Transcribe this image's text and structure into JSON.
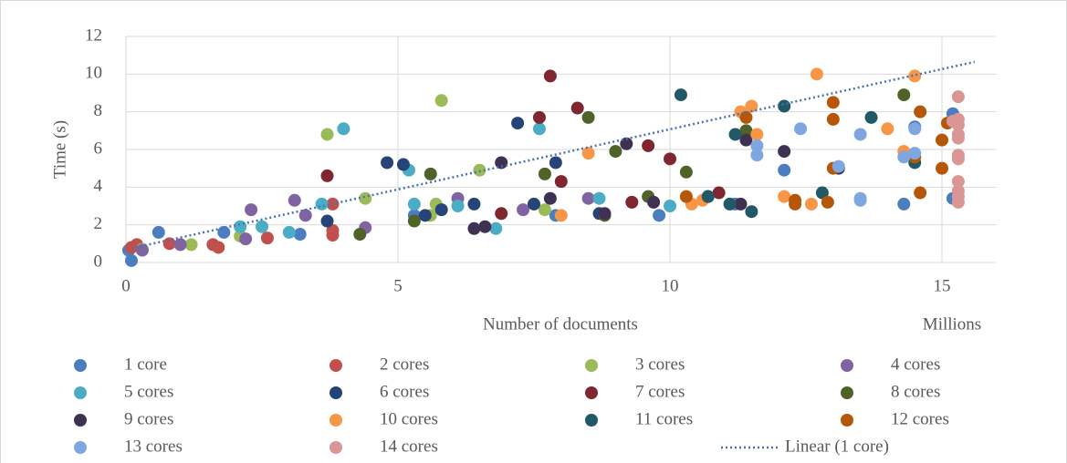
{
  "chart_data": {
    "type": "scatter",
    "xlabel": "Number of documents",
    "x_display_units": "Millions",
    "ylabel": "Time (s)",
    "xlim": [
      0,
      16
    ],
    "xticks": [
      0,
      5,
      10,
      15
    ],
    "ylim": [
      0,
      12
    ],
    "yticks": [
      0,
      2,
      4,
      6,
      8,
      10,
      12
    ],
    "grid": true,
    "legend": "bottom",
    "series": [
      {
        "name": "1 core",
        "color": "#4a7ebf",
        "x": [
          0.05,
          0.1,
          0.6,
          1.8,
          3.2,
          5.3,
          7.9,
          9.8,
          11.2,
          12.1,
          14.3,
          15.2,
          14.5,
          15.2
        ],
        "values": [
          0.65,
          0.1,
          1.6,
          1.6,
          1.5,
          2.5,
          2.5,
          2.5,
          3.1,
          4.9,
          3.1,
          3.4,
          7.2,
          7.9
        ]
      },
      {
        "name": "2 cores",
        "color": "#c0504d",
        "x": [
          0.1,
          0.2,
          0.8,
          1.6,
          1.7,
          2.6,
          3.8,
          3.8,
          3.8
        ],
        "values": [
          0.8,
          0.95,
          1.0,
          0.95,
          0.8,
          1.3,
          1.7,
          1.45,
          3.1
        ]
      },
      {
        "name": "3 cores",
        "color": "#9bbb59",
        "x": [
          0.3,
          1.2,
          2.1,
          3.7,
          4.4,
          5.8,
          5.7,
          6.5,
          5.6,
          7.7
        ],
        "values": [
          0.7,
          0.95,
          1.4,
          6.8,
          3.4,
          8.6,
          3.1,
          4.9,
          2.5,
          2.8
        ]
      },
      {
        "name": "4 cores",
        "color": "#8064a2",
        "x": [
          0.3,
          1.0,
          2.2,
          2.3,
          3.1,
          3.3,
          4.4,
          6.1,
          7.3,
          8.5
        ],
        "values": [
          0.65,
          0.95,
          1.25,
          2.8,
          3.3,
          2.5,
          1.85,
          3.4,
          2.8,
          3.4
        ]
      },
      {
        "name": "5 cores",
        "color": "#4bacc6",
        "x": [
          2.1,
          2.5,
          3.0,
          3.6,
          4.0,
          5.2,
          5.3,
          6.1,
          6.8,
          7.6,
          8.7,
          10.0
        ],
        "values": [
          1.9,
          1.9,
          1.6,
          3.1,
          7.1,
          4.9,
          3.1,
          3.0,
          1.8,
          7.1,
          3.4,
          3.0
        ]
      },
      {
        "name": "6 cores",
        "color": "#264478",
        "x": [
          3.7,
          4.8,
          5.1,
          5.5,
          5.8,
          6.4,
          7.2,
          7.5,
          7.9,
          8.7
        ],
        "values": [
          2.2,
          5.3,
          5.2,
          2.5,
          2.8,
          3.1,
          7.4,
          3.1,
          5.3,
          2.6
        ]
      },
      {
        "name": "7 cores",
        "color": "#7f2630",
        "x": [
          3.7,
          6.9,
          7.6,
          7.8,
          8.0,
          8.3,
          9.3,
          9.6,
          10.0,
          10.9
        ],
        "values": [
          4.6,
          2.6,
          7.7,
          9.9,
          4.3,
          8.2,
          3.2,
          6.2,
          5.5,
          3.7
        ]
      },
      {
        "name": "8 cores",
        "color": "#4f6228",
        "x": [
          4.3,
          5.3,
          5.6,
          7.7,
          8.5,
          8.8,
          9.0,
          9.6,
          10.3,
          11.4,
          14.3
        ],
        "values": [
          1.5,
          2.2,
          4.7,
          4.7,
          7.7,
          2.5,
          5.9,
          3.5,
          4.8,
          7.0,
          8.9
        ]
      },
      {
        "name": "9 cores",
        "color": "#3f3151",
        "x": [
          6.4,
          6.6,
          6.9,
          7.8,
          8.8,
          9.2,
          9.7,
          10.7,
          11.3,
          11.4,
          12.1,
          13.1
        ],
        "values": [
          1.8,
          1.9,
          5.3,
          3.4,
          2.6,
          6.3,
          3.2,
          3.5,
          3.1,
          6.5,
          5.9,
          5.0
        ]
      },
      {
        "name": "10 cores",
        "color": "#f79646",
        "x": [
          8.0,
          8.5,
          10.4,
          10.6,
          11.3,
          11.5,
          11.6,
          12.1,
          12.6,
          12.7,
          14.0,
          14.3,
          14.5
        ],
        "values": [
          2.5,
          5.8,
          3.1,
          3.3,
          8.0,
          8.3,
          6.8,
          3.5,
          3.1,
          10.0,
          7.1,
          5.9,
          9.9
        ]
      },
      {
        "name": "11 cores",
        "color": "#215967",
        "x": [
          10.2,
          10.7,
          11.1,
          11.2,
          11.5,
          12.1,
          12.8,
          13.7,
          14.5
        ],
        "values": [
          8.9,
          3.5,
          3.1,
          6.8,
          2.7,
          8.3,
          3.7,
          7.7,
          5.3
        ]
      },
      {
        "name": "12 cores",
        "color": "#b65708",
        "x": [
          10.3,
          11.4,
          12.3,
          12.3,
          12.9,
          13.0,
          13.0,
          13.0,
          14.6,
          14.6,
          15.0,
          15.0,
          15.1,
          14.5
        ],
        "values": [
          3.5,
          7.7,
          3.3,
          3.1,
          3.2,
          5.0,
          8.5,
          7.6,
          3.7,
          8.0,
          5.0,
          6.5,
          7.4,
          5.6
        ]
      },
      {
        "name": "13 cores",
        "color": "#7ea6e0",
        "x": [
          11.6,
          11.6,
          12.4,
          13.1,
          13.5,
          13.5,
          13.5,
          14.3,
          14.5,
          14.5
        ],
        "values": [
          5.7,
          6.2,
          7.1,
          5.1,
          6.8,
          3.4,
          3.3,
          5.6,
          5.8,
          7.1
        ]
      },
      {
        "name": "14 cores",
        "color": "#d99694",
        "x": [
          15.3,
          15.3,
          15.3,
          15.3,
          15.3,
          15.3,
          15.3,
          15.3,
          15.3,
          15.3,
          15.3,
          15.2
        ],
        "values": [
          8.8,
          7.6,
          7.3,
          6.8,
          6.6,
          5.7,
          5.5,
          4.3,
          3.8,
          3.5,
          3.2,
          7.5
        ]
      }
    ],
    "trendline": {
      "name": "Linear (1 core)",
      "color": "#4a72b0",
      "x": [
        0.1,
        15.6
      ],
      "values": [
        0.75,
        10.65
      ]
    }
  }
}
